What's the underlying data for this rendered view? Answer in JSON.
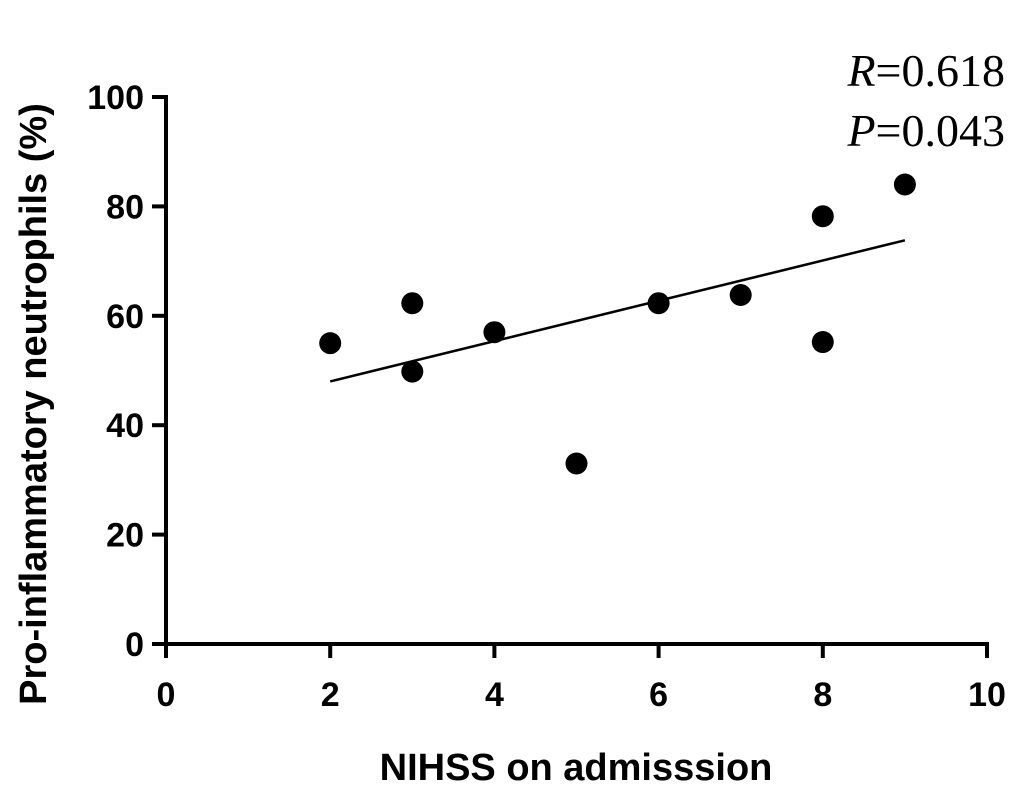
{
  "chart_data": {
    "type": "scatter",
    "title": "",
    "xlabel": "NIHSS on admisssion",
    "ylabel": "Pro-inflammatory neutrophils (%)",
    "xlim": [
      0,
      10
    ],
    "ylim": [
      0,
      100
    ],
    "x_ticks": [
      "0",
      "2",
      "4",
      "6",
      "8",
      "10"
    ],
    "y_ticks": [
      "0",
      "20",
      "40",
      "60",
      "80",
      "100"
    ],
    "grid": false,
    "legend": "none",
    "marker_color": "#000000",
    "series": [
      {
        "points": [
          {
            "x": 2,
            "y": 55
          },
          {
            "x": 3,
            "y": 62.3
          },
          {
            "x": 3,
            "y": 49.8
          },
          {
            "x": 4,
            "y": 57
          },
          {
            "x": 5,
            "y": 33
          },
          {
            "x": 6,
            "y": 62.3
          },
          {
            "x": 7,
            "y": 63.8
          },
          {
            "x": 8,
            "y": 78.2
          },
          {
            "x": 8,
            "y": 55.2
          },
          {
            "x": 9,
            "y": 84
          }
        ]
      }
    ],
    "regression_line": {
      "x": [
        2,
        9
      ],
      "y": [
        48,
        73.8
      ]
    },
    "annotations": {
      "r_symbol": "R",
      "r_value": "=0.618",
      "p_symbol": "P",
      "p_value": "=0.043"
    }
  }
}
